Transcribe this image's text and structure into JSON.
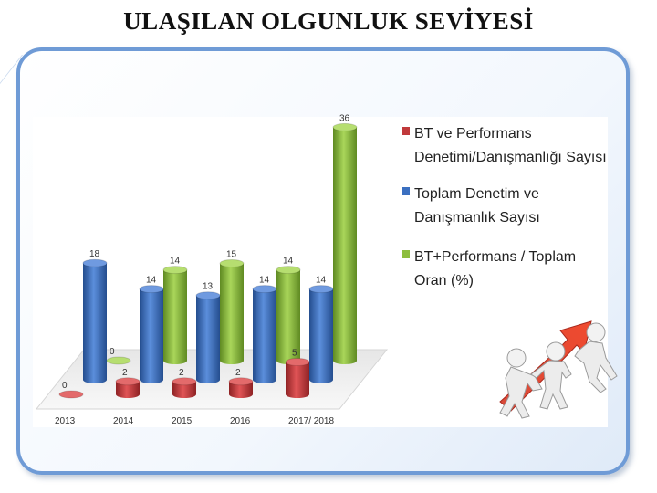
{
  "slide": {
    "title": "ULAŞILAN OLGUNLUK SEVİYESİ"
  },
  "colors": {
    "series_red": "#c0393b",
    "series_blue": "#3b6fc0",
    "series_green": "#8dbe3e",
    "frame_border": "#6f9bd6"
  },
  "chart_data": {
    "type": "bar",
    "style": "3d-cylinder",
    "categories": [
      "2013",
      "2014",
      "2015",
      "2016",
      "2017/ 2018"
    ],
    "series": [
      {
        "name": "BT ve Performans Denetimi/Danışmanlığı Sayısı",
        "color": "#c0393b",
        "values": [
          0,
          2,
          2,
          2,
          5
        ]
      },
      {
        "name": "Toplam Denetim ve Danışmanlık  Sayısı",
        "color": "#3b6fc0",
        "values": [
          18,
          14,
          13,
          14,
          14
        ]
      },
      {
        "name": "BT+Performans / Toplam Oran (%)",
        "color": "#8dbe3e",
        "values": [
          0,
          14,
          15,
          14,
          36
        ]
      }
    ],
    "legend": {
      "placement": "right",
      "lines": [
        [
          "BT ve Performans",
          "Denetimi/Danışmanlığı Sayısı"
        ],
        [
          "Toplam Denetim ve",
          "Danışmanlık  Sayısı"
        ],
        [
          "BT+Performans / Toplam",
          "Oran (%)"
        ]
      ]
    },
    "ylim": [
      0,
      36
    ],
    "grid": false
  },
  "decoration": {
    "figure_icon": "people-pushing-arrow-icon"
  }
}
